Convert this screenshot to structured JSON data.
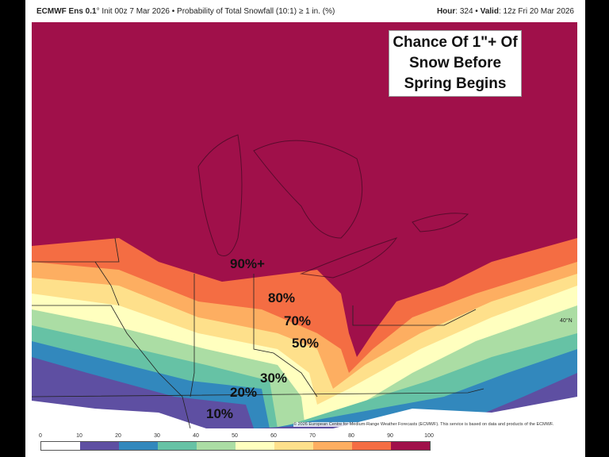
{
  "header": {
    "model": "ECMWF Ens 0.1",
    "model_suffix": "°",
    "init": "Init 00z 7 Mar 2026",
    "product": "• Probability of Total Snowfall (10:1) ≥ 1 in. (%)",
    "hour_label": "Hour",
    "hour": ": 324 •",
    "valid_label": "Valid",
    "valid": ": 12z Fri 20 Mar 2026"
  },
  "annotation": {
    "title_lines": [
      "Chance Of 1\"+ Of",
      "Snow Before",
      "Spring Begins"
    ]
  },
  "map_labels": [
    "90%+",
    "80%",
    "70%",
    "50%",
    "30%",
    "20%",
    "10%"
  ],
  "latitude_label": "40°N",
  "copyright": "© 2026 European Centre for Medium-Range Weather Forecasts (ECMWF). This service is based on data and products of the ECMWF.",
  "legend": {
    "ticks": [
      "0",
      "10",
      "20",
      "30",
      "40",
      "50",
      "60",
      "70",
      "80",
      "90",
      "100"
    ],
    "colors": [
      "#ffffff",
      "#5e4fa2",
      "#3288bd",
      "#66c2a5",
      "#abdda4",
      "#ffffbf",
      "#fee08b",
      "#fdae61",
      "#f46d43",
      "#e8613f",
      "#a0104a"
    ]
  }
}
